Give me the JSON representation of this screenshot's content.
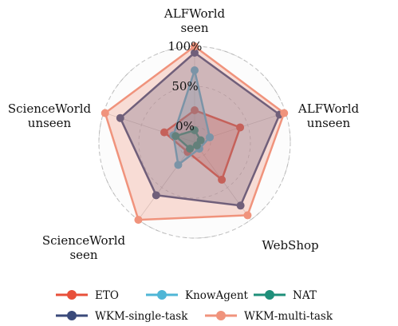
{
  "chart_data": {
    "type": "radar",
    "axes": [
      [
        "ALFWorld",
        "seen"
      ],
      [
        "ALFWorld",
        "unseen"
      ],
      [
        "WebShop"
      ],
      [
        "ScienceWorld",
        "seen"
      ],
      [
        "ScienceWorld",
        "unseen"
      ]
    ],
    "radial_ticks": [
      {
        "value": 0,
        "label": "0%"
      },
      {
        "value": 50,
        "label": "50%"
      },
      {
        "value": 100,
        "label": "100%"
      }
    ],
    "rlim": [
      -20,
      100
    ],
    "series": [
      {
        "name": "ETO",
        "color": "#e8503a",
        "values": [
          20,
          40,
          38,
          -5,
          20
        ]
      },
      {
        "name": "KnowAgent",
        "color": "#4fb6d6",
        "values": [
          70,
          0,
          -10,
          15,
          8
        ]
      },
      {
        "name": "NAT",
        "color": "#1f8f7a",
        "values": [
          -5,
          -12,
          -15,
          -10,
          5
        ]
      },
      {
        "name": "WKM-single-task",
        "color": "#3a4a7a",
        "values": [
          92,
          92,
          78,
          62,
          78
        ]
      },
      {
        "name": "WKM-multi-task",
        "color": "#f0937c",
        "values": [
          100,
          98,
          93,
          100,
          98
        ]
      }
    ],
    "legend": "bottom"
  }
}
